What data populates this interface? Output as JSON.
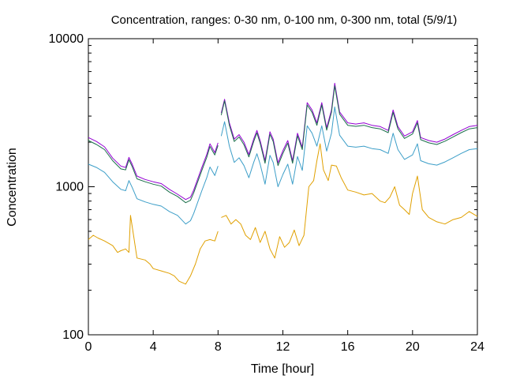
{
  "chart_data": {
    "type": "line",
    "title": "Concentration, ranges: 0-30 nm, 0-100 nm, 0-300 nm, total (5/9/1)",
    "xlabel": "Time [hour]",
    "ylabel": "Concentration",
    "xlim": [
      0,
      24
    ],
    "ylim": [
      100,
      10000
    ],
    "yscale": "log",
    "grid": false,
    "legend": "none",
    "xticks": [
      0,
      4,
      8,
      12,
      16,
      20,
      24
    ],
    "xtick_labels": [
      "0",
      "4",
      "8",
      "12",
      "16",
      "20",
      "24"
    ],
    "yticks": [
      100,
      1000,
      10000
    ],
    "ytick_labels": [
      "100",
      "1000",
      "10000"
    ],
    "series": [
      {
        "color": "#9400d3",
        "values": [
          [
            0,
            2150
          ],
          [
            0.5,
            2020
          ],
          [
            1,
            1860
          ],
          [
            1.5,
            1560
          ],
          [
            2,
            1380
          ],
          [
            2.3,
            1350
          ],
          [
            2.5,
            1580
          ],
          [
            2.7,
            1420
          ],
          [
            3,
            1180
          ],
          [
            3.5,
            1120
          ],
          [
            4,
            1080
          ],
          [
            4.5,
            1050
          ],
          [
            5,
            960
          ],
          [
            5.5,
            890
          ],
          [
            6,
            820
          ],
          [
            6.3,
            850
          ],
          [
            6.5,
            950
          ],
          [
            7,
            1350
          ],
          [
            7.3,
            1650
          ],
          [
            7.5,
            1950
          ],
          [
            7.8,
            1700
          ],
          [
            8,
            1980
          ],
          null,
          [
            8.2,
            3150
          ],
          [
            8.4,
            3900
          ],
          [
            8.7,
            2700
          ],
          [
            9,
            2100
          ],
          [
            9.3,
            2250
          ],
          [
            9.6,
            2000
          ],
          [
            9.9,
            1650
          ],
          [
            10.2,
            2100
          ],
          [
            10.4,
            2400
          ],
          [
            10.6,
            2050
          ],
          [
            10.9,
            1500
          ],
          [
            11.2,
            2350
          ],
          [
            11.4,
            2100
          ],
          [
            11.7,
            1450
          ],
          [
            12,
            1750
          ],
          [
            12.3,
            2050
          ],
          [
            12.6,
            1500
          ],
          [
            12.9,
            2300
          ],
          [
            13.2,
            1850
          ],
          [
            13.5,
            3700
          ],
          [
            13.8,
            3300
          ],
          [
            14.1,
            2700
          ],
          [
            14.4,
            3700
          ],
          [
            14.7,
            2500
          ],
          [
            15,
            3300
          ],
          [
            15.2,
            5000
          ],
          [
            15.5,
            3200
          ],
          [
            16,
            2700
          ],
          [
            16.5,
            2650
          ],
          [
            17,
            2700
          ],
          [
            17.5,
            2600
          ],
          [
            18,
            2550
          ],
          [
            18.5,
            2400
          ],
          [
            18.8,
            3300
          ],
          [
            19.1,
            2550
          ],
          [
            19.5,
            2200
          ],
          [
            20,
            2350
          ],
          [
            20.3,
            2800
          ],
          [
            20.5,
            2150
          ],
          [
            21,
            2050
          ],
          [
            21.5,
            2000
          ],
          [
            22,
            2100
          ],
          [
            22.5,
            2250
          ],
          [
            23,
            2400
          ],
          [
            23.5,
            2550
          ],
          [
            24,
            2600
          ]
        ]
      },
      {
        "color": "#1a6e4a",
        "values": [
          [
            0,
            2050
          ],
          [
            0.5,
            1930
          ],
          [
            1,
            1780
          ],
          [
            1.5,
            1500
          ],
          [
            2,
            1320
          ],
          [
            2.3,
            1300
          ],
          [
            2.5,
            1520
          ],
          [
            2.7,
            1370
          ],
          [
            3,
            1130
          ],
          [
            3.5,
            1080
          ],
          [
            4,
            1040
          ],
          [
            4.5,
            1010
          ],
          [
            5,
            920
          ],
          [
            5.5,
            860
          ],
          [
            6,
            780
          ],
          [
            6.3,
            810
          ],
          [
            6.5,
            910
          ],
          [
            7,
            1290
          ],
          [
            7.3,
            1580
          ],
          [
            7.5,
            1870
          ],
          [
            7.8,
            1640
          ],
          [
            8,
            1900
          ],
          null,
          [
            8.2,
            3050
          ],
          [
            8.4,
            3800
          ],
          [
            8.7,
            2600
          ],
          [
            9,
            2020
          ],
          [
            9.3,
            2170
          ],
          [
            9.6,
            1920
          ],
          [
            9.9,
            1590
          ],
          [
            10.2,
            2020
          ],
          [
            10.4,
            2310
          ],
          [
            10.6,
            1970
          ],
          [
            10.9,
            1440
          ],
          [
            11.2,
            2260
          ],
          [
            11.4,
            2020
          ],
          [
            11.7,
            1390
          ],
          [
            12,
            1680
          ],
          [
            12.3,
            1970
          ],
          [
            12.6,
            1440
          ],
          [
            12.9,
            2210
          ],
          [
            13.2,
            1780
          ],
          [
            13.5,
            3570
          ],
          [
            13.8,
            3180
          ],
          [
            14.1,
            2600
          ],
          [
            14.4,
            3570
          ],
          [
            14.7,
            2410
          ],
          [
            15,
            3180
          ],
          [
            15.2,
            4800
          ],
          [
            15.5,
            3090
          ],
          [
            16,
            2600
          ],
          [
            16.5,
            2560
          ],
          [
            17,
            2600
          ],
          [
            17.5,
            2510
          ],
          [
            18,
            2460
          ],
          [
            18.5,
            2320
          ],
          [
            18.8,
            3180
          ],
          [
            19.1,
            2460
          ],
          [
            19.5,
            2120
          ],
          [
            20,
            2270
          ],
          [
            20.3,
            2700
          ],
          [
            20.5,
            2080
          ],
          [
            21,
            1980
          ],
          [
            21.5,
            1930
          ],
          [
            22,
            2030
          ],
          [
            22.5,
            2170
          ],
          [
            23,
            2320
          ],
          [
            23.5,
            2460
          ],
          [
            24,
            2510
          ]
        ]
      },
      {
        "color": "#3c9ec8",
        "values": [
          [
            0,
            1420
          ],
          [
            0.5,
            1350
          ],
          [
            1,
            1250
          ],
          [
            1.5,
            1080
          ],
          [
            2,
            960
          ],
          [
            2.3,
            940
          ],
          [
            2.5,
            1100
          ],
          [
            2.7,
            990
          ],
          [
            3,
            830
          ],
          [
            3.5,
            790
          ],
          [
            4,
            760
          ],
          [
            4.5,
            740
          ],
          [
            5,
            680
          ],
          [
            5.5,
            640
          ],
          [
            6,
            560
          ],
          [
            6.3,
            590
          ],
          [
            6.5,
            660
          ],
          [
            7,
            940
          ],
          [
            7.3,
            1150
          ],
          [
            7.5,
            1360
          ],
          [
            7.8,
            1190
          ],
          [
            8,
            1380
          ],
          null,
          [
            8.2,
            2200
          ],
          [
            8.4,
            2750
          ],
          [
            8.7,
            1880
          ],
          [
            9,
            1460
          ],
          [
            9.3,
            1570
          ],
          [
            9.6,
            1390
          ],
          [
            9.9,
            1150
          ],
          [
            10.2,
            1460
          ],
          [
            10.4,
            1670
          ],
          [
            10.6,
            1420
          ],
          [
            10.9,
            1040
          ],
          [
            11.2,
            1630
          ],
          [
            11.4,
            1460
          ],
          [
            11.7,
            1000
          ],
          [
            12,
            1210
          ],
          [
            12.3,
            1420
          ],
          [
            12.6,
            1040
          ],
          [
            12.9,
            1600
          ],
          [
            13.2,
            1290
          ],
          [
            13.5,
            2580
          ],
          [
            13.8,
            2300
          ],
          [
            14.1,
            1880
          ],
          [
            14.4,
            2580
          ],
          [
            14.7,
            1740
          ],
          [
            15,
            2300
          ],
          [
            15.2,
            3460
          ],
          [
            15.5,
            2230
          ],
          [
            16,
            1880
          ],
          [
            16.5,
            1850
          ],
          [
            17,
            1880
          ],
          [
            17.5,
            1810
          ],
          [
            18,
            1780
          ],
          [
            18.5,
            1680
          ],
          [
            18.8,
            2300
          ],
          [
            19.1,
            1780
          ],
          [
            19.5,
            1530
          ],
          [
            20,
            1640
          ],
          [
            20.3,
            1950
          ],
          [
            20.5,
            1500
          ],
          [
            21,
            1430
          ],
          [
            21.5,
            1400
          ],
          [
            22,
            1470
          ],
          [
            22.5,
            1570
          ],
          [
            23,
            1680
          ],
          [
            23.5,
            1780
          ],
          [
            24,
            1810
          ]
        ]
      },
      {
        "color": "#e0a000",
        "values": [
          [
            0,
            440
          ],
          [
            0.3,
            470
          ],
          [
            0.6,
            450
          ],
          [
            1,
            430
          ],
          [
            1.5,
            400
          ],
          [
            1.8,
            360
          ],
          [
            2,
            370
          ],
          [
            2.3,
            380
          ],
          [
            2.5,
            360
          ],
          [
            2.6,
            640
          ],
          [
            2.8,
            460
          ],
          [
            3,
            330
          ],
          [
            3.5,
            320
          ],
          [
            3.8,
            300
          ],
          [
            4,
            280
          ],
          [
            4.5,
            270
          ],
          [
            5,
            260
          ],
          [
            5.3,
            250
          ],
          [
            5.6,
            230
          ],
          [
            6,
            220
          ],
          [
            6.3,
            250
          ],
          [
            6.6,
            300
          ],
          [
            6.9,
            380
          ],
          [
            7.2,
            430
          ],
          [
            7.5,
            440
          ],
          [
            7.8,
            430
          ],
          [
            8,
            500
          ],
          null,
          [
            8.2,
            620
          ],
          [
            8.5,
            640
          ],
          [
            8.8,
            560
          ],
          [
            9.1,
            600
          ],
          [
            9.4,
            560
          ],
          [
            9.7,
            470
          ],
          [
            10,
            440
          ],
          [
            10.3,
            530
          ],
          [
            10.6,
            420
          ],
          [
            10.9,
            500
          ],
          [
            11.2,
            380
          ],
          [
            11.5,
            330
          ],
          [
            11.8,
            460
          ],
          [
            12.1,
            390
          ],
          [
            12.4,
            420
          ],
          [
            12.7,
            510
          ],
          [
            13,
            400
          ],
          [
            13.3,
            470
          ],
          [
            13.6,
            1000
          ],
          [
            13.9,
            1100
          ],
          [
            14.1,
            1500
          ],
          [
            14.3,
            1950
          ],
          [
            14.5,
            1300
          ],
          [
            14.8,
            1100
          ],
          [
            15,
            1400
          ],
          [
            15.3,
            1380
          ],
          [
            15.6,
            1150
          ],
          [
            16,
            950
          ],
          [
            16.5,
            920
          ],
          [
            17,
            880
          ],
          [
            17.5,
            900
          ],
          [
            18,
            800
          ],
          [
            18.3,
            780
          ],
          [
            18.6,
            850
          ],
          [
            18.9,
            1000
          ],
          [
            19.2,
            750
          ],
          [
            19.5,
            700
          ],
          [
            19.8,
            650
          ],
          [
            20,
            900
          ],
          [
            20.3,
            1180
          ],
          [
            20.6,
            700
          ],
          [
            21,
            620
          ],
          [
            21.5,
            580
          ],
          [
            22,
            560
          ],
          [
            22.5,
            600
          ],
          [
            23,
            620
          ],
          [
            23.5,
            680
          ],
          [
            24,
            630
          ]
        ]
      }
    ]
  }
}
